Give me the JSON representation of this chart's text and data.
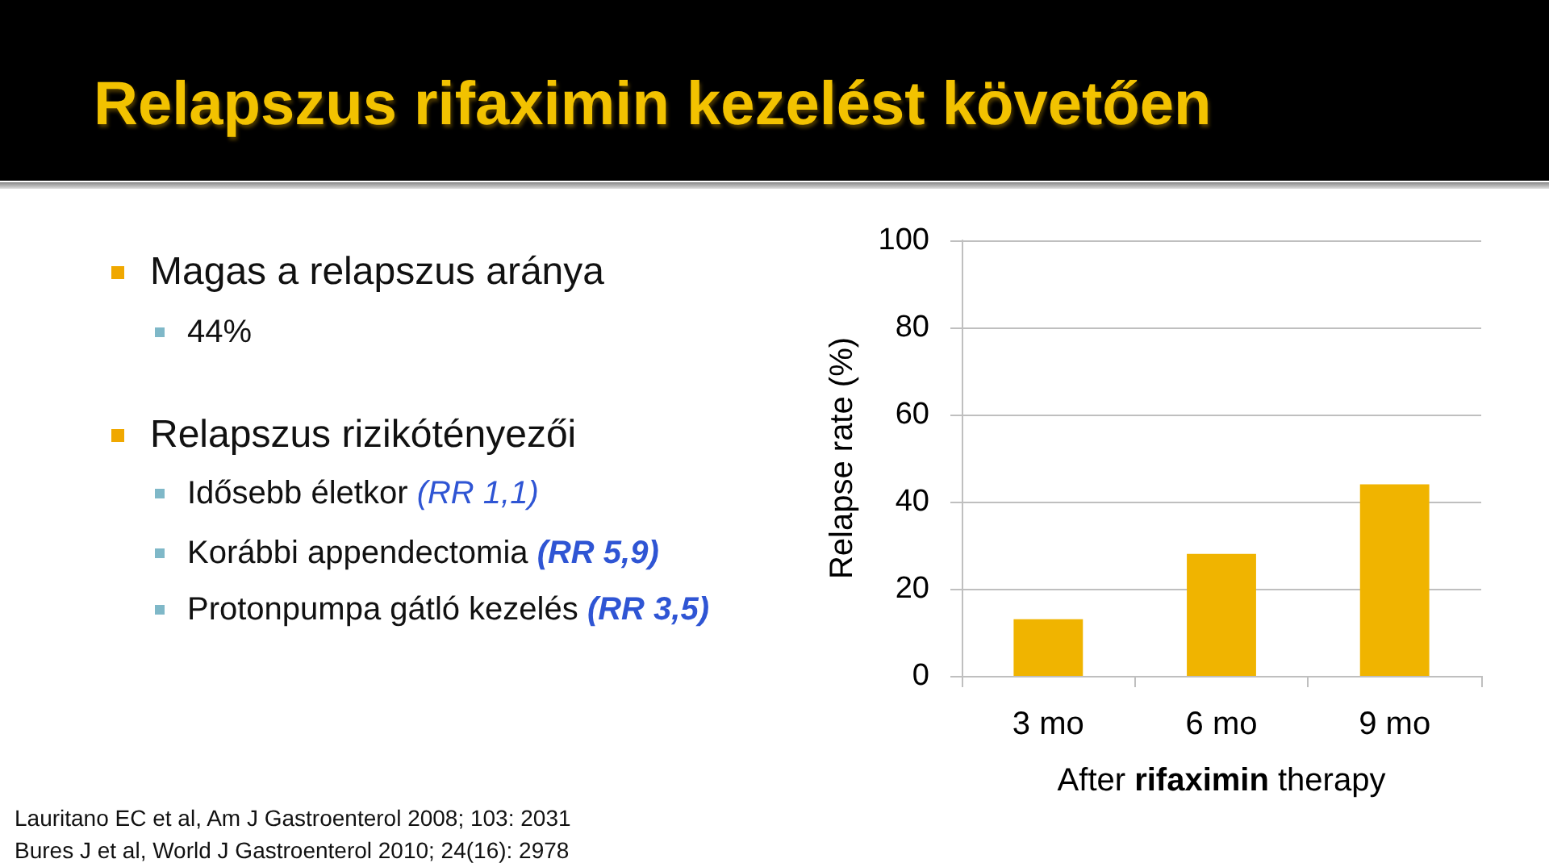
{
  "chart_data": {
    "type": "bar",
    "title": "Relapszus rifaximin kezelést követően",
    "xlabel": "After rifaximin therapy",
    "ylabel": "Relapse rate (%)",
    "categories": [
      "3 mo",
      "6 mo",
      "9 mo"
    ],
    "values": [
      13,
      28,
      44
    ],
    "color": "#f0b400",
    "ylim": [
      0,
      100
    ],
    "yticks": [
      0,
      20,
      40,
      60,
      80,
      100
    ],
    "grid": "y",
    "annotations": [
      "Magas a relapszus aránya",
      "44%",
      "Relapszus rizikótényezői",
      "Idősebb életkor",
      "(RR 1,1)",
      "Korábbi appendectomia",
      "(RR 5,9)",
      "Protonpumpa gátló kezelés",
      "(RR 3,5)",
      "Lauritano EC et al, Am J Gastroenterol 2008; 103: 2031",
      "Bures J et al, World J Gastroenterol 2010; 24(16): 2978"
    ]
  }
}
